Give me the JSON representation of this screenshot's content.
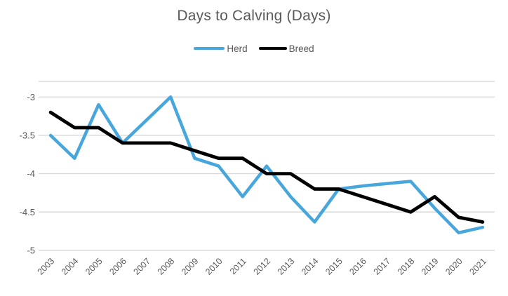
{
  "title": "Days to Calving (Days)",
  "chart_data": {
    "type": "line",
    "title": "Days to Calving (Days)",
    "xlabel": "",
    "ylabel": "",
    "categories": [
      "2003",
      "2004",
      "2005",
      "2006",
      "2007",
      "2008",
      "2009",
      "2010",
      "2011",
      "2012",
      "2013",
      "2014",
      "2015",
      "2016",
      "2017",
      "2018",
      "2019",
      "2020",
      "2021"
    ],
    "series": [
      {
        "name": "Herd",
        "color": "#47A6DC",
        "values": [
          -3.5,
          -3.8,
          -3.1,
          -3.6,
          -3.3,
          -3.0,
          -3.8,
          -3.9,
          -4.3,
          -3.9,
          -4.3,
          -4.63,
          -4.2,
          -4.16,
          -4.13,
          -4.1,
          -4.45,
          -4.77,
          -4.7
        ]
      },
      {
        "name": "Breed",
        "color": "#000000",
        "values": [
          -3.2,
          -3.4,
          -3.4,
          -3.6,
          -3.6,
          -3.6,
          -3.7,
          -3.8,
          -3.8,
          -4.0,
          -4.0,
          -4.2,
          -4.2,
          -4.3,
          -4.4,
          -4.5,
          -4.3,
          -4.57,
          -4.63
        ]
      }
    ],
    "ylim": [
      -5.1,
      -2.8
    ],
    "yticks": [
      -3,
      -3.5,
      -4,
      -4.5,
      -5
    ],
    "ytick_labels": [
      "-3",
      "-3.5",
      "-4",
      "-4.5",
      "-5"
    ],
    "grid": true,
    "legend_position": "top",
    "colors": {
      "gridline": "#D9D9D9",
      "text": "#595959",
      "background": "#FFFFFF"
    }
  }
}
